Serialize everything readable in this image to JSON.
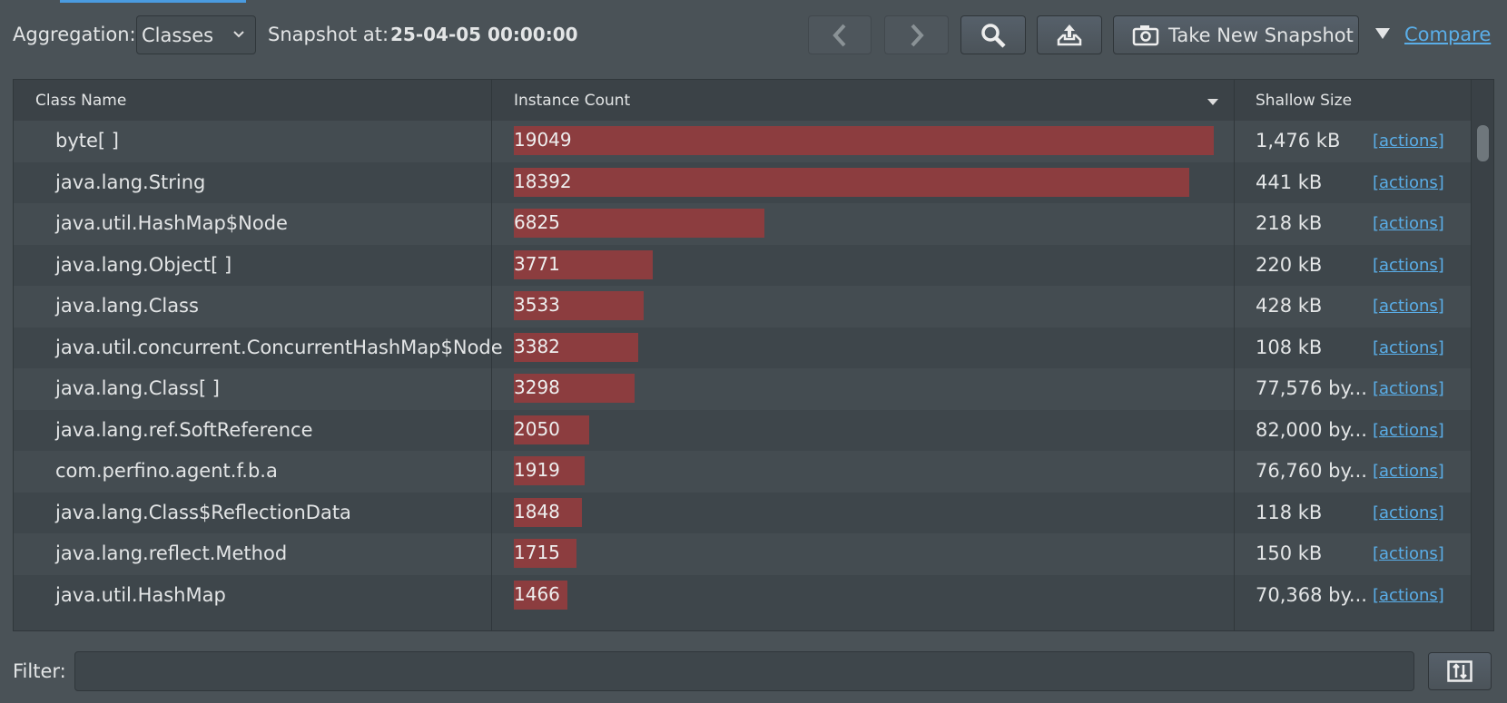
{
  "toolbar": {
    "aggregation_label": "Aggregation:",
    "aggregation_value": "Classes",
    "snapshot_label": "Snapshot at:",
    "snapshot_value": "25-04-05 00:00:00",
    "take_snapshot": "Take New Snapshot",
    "compare": "Compare"
  },
  "table": {
    "columns": [
      "Class Name",
      "Instance Count",
      "Shallow Size"
    ],
    "rows": [
      {
        "class_name": "byte[ ]",
        "instance_count": 19049,
        "shallow_size": "1,476 kB",
        "action": "[actions]"
      },
      {
        "class_name": "java.lang.String",
        "instance_count": 18392,
        "shallow_size": "441 kB",
        "action": "[actions]"
      },
      {
        "class_name": "java.util.HashMap$Node",
        "instance_count": 6825,
        "shallow_size": "218 kB",
        "action": "[actions]"
      },
      {
        "class_name": "java.lang.Object[ ]",
        "instance_count": 3771,
        "shallow_size": "220 kB",
        "action": "[actions]"
      },
      {
        "class_name": "java.lang.Class",
        "instance_count": 3533,
        "shallow_size": "428 kB",
        "action": "[actions]"
      },
      {
        "class_name": "java.util.concurrent.ConcurrentHashMap$Node",
        "instance_count": 3382,
        "shallow_size": "108 kB",
        "action": "[actions]"
      },
      {
        "class_name": "java.lang.Class[ ]",
        "instance_count": 3298,
        "shallow_size": "77,576 by...",
        "action": "[actions]"
      },
      {
        "class_name": "java.lang.ref.SoftReference",
        "instance_count": 2050,
        "shallow_size": "82,000 by...",
        "action": "[actions]"
      },
      {
        "class_name": "com.perfino.agent.f.b.a",
        "instance_count": 1919,
        "shallow_size": "76,760 by...",
        "action": "[actions]"
      },
      {
        "class_name": "java.lang.Class$ReflectionData",
        "instance_count": 1848,
        "shallow_size": "118 kB",
        "action": "[actions]"
      },
      {
        "class_name": "java.lang.reflect.Method",
        "instance_count": 1715,
        "shallow_size": "150 kB",
        "action": "[actions]"
      },
      {
        "class_name": "java.util.HashMap",
        "instance_count": 1466,
        "shallow_size": "70,368 by...",
        "action": "[actions]"
      }
    ]
  },
  "filter": {
    "label": "Filter:"
  }
}
